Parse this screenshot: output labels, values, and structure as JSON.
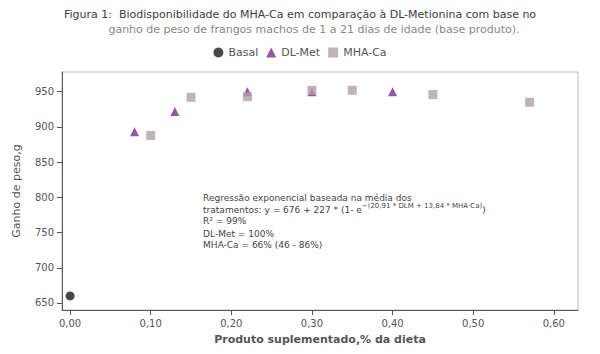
{
  "chart_data": {
    "type": "scatter",
    "title": "Figura 1:  Biodisponibilidade do MHA-Ca em comparação à DL-Metionina com base no",
    "subtitle": "        ganho de peso de frangos machos de 1 a 21 dias de idade (base produto).",
    "xlabel": "Produto suplementado,% da dieta",
    "ylabel": "Ganho de peso,g",
    "xlim": [
      -0.01,
      0.63
    ],
    "xticks": [
      {
        "value": 0.0,
        "label": "0,00"
      },
      {
        "value": 0.1,
        "label": "0,10"
      },
      {
        "value": 0.2,
        "label": "0,20"
      },
      {
        "value": 0.3,
        "label": "0,30"
      },
      {
        "value": 0.4,
        "label": "0,40"
      },
      {
        "value": 0.5,
        "label": "0,50"
      },
      {
        "value": 0.6,
        "label": "0,60"
      }
    ],
    "ylim": [
      640,
      978
    ],
    "yticks": [
      650,
      700,
      750,
      800,
      850,
      900,
      950
    ],
    "grid": false,
    "legend": "top",
    "series": [
      {
        "name": "Basal",
        "color": "#1a1a1a",
        "marker": "circle",
        "x": [
          0.0
        ],
        "values": [
          660
        ]
      },
      {
        "name": "DL-Met",
        "color": "#7b2d8b",
        "marker": "triangle",
        "x": [
          0.08,
          0.13,
          0.22,
          0.3,
          0.4
        ],
        "values": [
          893,
          922,
          950,
          950,
          950
        ]
      },
      {
        "name": "MHA-Ca",
        "color": "#b0a0a8",
        "marker": "square",
        "x": [
          0.1,
          0.15,
          0.22,
          0.3,
          0.35,
          0.45,
          0.57
        ],
        "values": [
          888,
          942,
          943,
          952,
          952,
          946,
          935
        ]
      }
    ],
    "annotations": [
      {
        "text": "Regressão exponencial baseada na média dos",
        "x": 0.165,
        "y": 805
      },
      {
        "text": "tratamentos: y = 676 + 227 * (1- e",
        "superscript": "−(20,91 * DLM + 13,84 * MHA·Ca)",
        "text_after": ")",
        "x": 0.165,
        "y": 789
      },
      {
        "text": "R² = 99%",
        "x": 0.165,
        "y": 773
      },
      {
        "text": "DL-Met = 100%",
        "x": 0.165,
        "y": 754
      },
      {
        "text": "MHA-Ca = 66% (46 - 86%)",
        "x": 0.165,
        "y": 738
      }
    ]
  }
}
